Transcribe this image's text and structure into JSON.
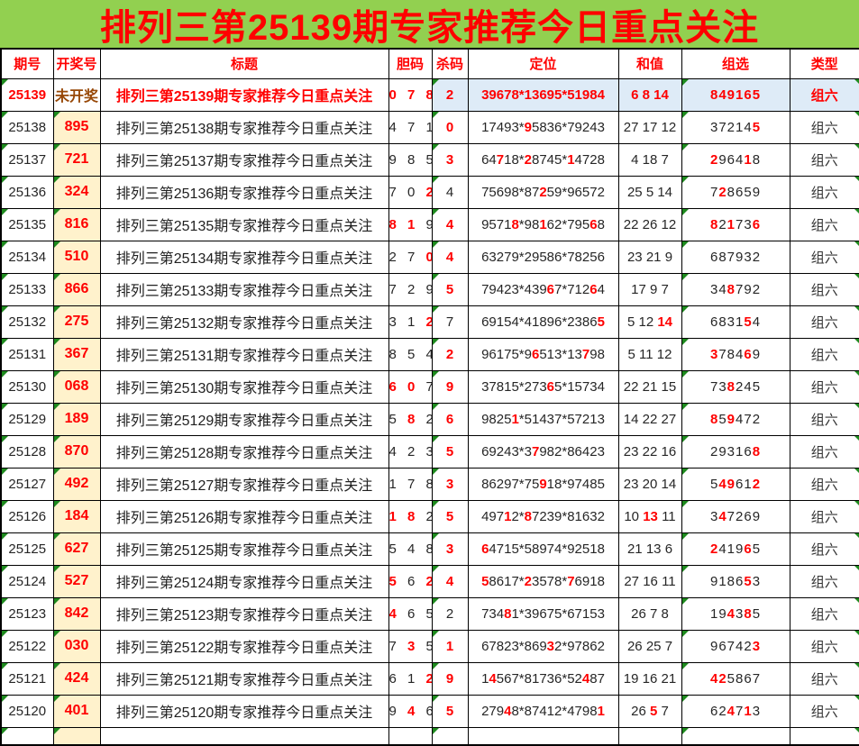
{
  "page_title": "排列三第25139期专家推荐今日重点关注",
  "colors": {
    "title_bg_green": "#92D050",
    "highlight_red": "#FF0000",
    "pending_row_blue": "#DEEBF7",
    "draw_cell_cream": "#FFF2CC",
    "pending_text_brown": "#974706",
    "comment_triangle_green": "#1E8A1E"
  },
  "table": {
    "columns": [
      "期号",
      "开奖号",
      "标题",
      "胆码",
      "杀码",
      "定位",
      "和值",
      "组选",
      "类型"
    ],
    "rows": [
      {
        "issue": "25139",
        "draw": "未开奖",
        "title": "排列三第25139期专家推荐今日重点关注",
        "dan": "078",
        "dan_red": [],
        "kill": "2",
        "kill_red": false,
        "pos": [
          "39678",
          "13695",
          "51984"
        ],
        "pos_red": [
          [],
          [],
          []
        ],
        "sum": [
          "6",
          "8",
          "14"
        ],
        "sum_red": [],
        "group": "849165",
        "group_red": [],
        "type": "组六",
        "highlight": true
      },
      {
        "issue": "25138",
        "draw": "895",
        "title": "排列三第25138期专家推荐今日重点关注",
        "dan": "471",
        "dan_red": [],
        "kill": "0",
        "kill_red": true,
        "pos": [
          "17493",
          "95836",
          "79243"
        ],
        "pos_red": [
          [],
          [
            0
          ],
          []
        ],
        "sum": [
          "27",
          "17",
          "12"
        ],
        "sum_red": [],
        "group": "372145",
        "group_red": [
          5
        ],
        "type": "组六"
      },
      {
        "issue": "25137",
        "draw": "721",
        "title": "排列三第25137期专家推荐今日重点关注",
        "dan": "985",
        "dan_red": [],
        "kill": "3",
        "kill_red": true,
        "pos": [
          "64718",
          "28745",
          "14728"
        ],
        "pos_red": [
          [
            2
          ],
          [
            0
          ],
          [
            0
          ]
        ],
        "sum": [
          "4",
          "18",
          "7"
        ],
        "sum_red": [],
        "group": "296418",
        "group_red": [
          0,
          4
        ],
        "type": "组六"
      },
      {
        "issue": "25136",
        "draw": "324",
        "title": "排列三第25136期专家推荐今日重点关注",
        "dan": "702",
        "dan_red": [
          2
        ],
        "kill": "4",
        "kill_red": false,
        "pos": [
          "75698",
          "87259",
          "96572"
        ],
        "pos_red": [
          [],
          [
            2
          ],
          []
        ],
        "sum": [
          "25",
          "5",
          "14"
        ],
        "sum_red": [],
        "group": "728659",
        "group_red": [
          1
        ],
        "type": "组六"
      },
      {
        "issue": "25135",
        "draw": "816",
        "title": "排列三第25135期专家推荐今日重点关注",
        "dan": "819",
        "dan_red": [
          0,
          1
        ],
        "kill": "4",
        "kill_red": true,
        "pos": [
          "95718",
          "98162",
          "79568"
        ],
        "pos_red": [
          [
            4
          ],
          [
            2
          ],
          [
            3
          ]
        ],
        "sum": [
          "22",
          "26",
          "12"
        ],
        "sum_red": [],
        "group": "821736",
        "group_red": [
          0,
          2,
          5
        ],
        "type": "组六"
      },
      {
        "issue": "25134",
        "draw": "510",
        "title": "排列三第25134期专家推荐今日重点关注",
        "dan": "270",
        "dan_red": [
          2
        ],
        "kill": "4",
        "kill_red": true,
        "pos": [
          "63279",
          "29586",
          "78256"
        ],
        "pos_red": [
          [],
          [],
          []
        ],
        "sum": [
          "23",
          "21",
          "9"
        ],
        "sum_red": [],
        "group": "687932",
        "group_red": [],
        "type": "组六"
      },
      {
        "issue": "25133",
        "draw": "866",
        "title": "排列三第25133期专家推荐今日重点关注",
        "dan": "729",
        "dan_red": [],
        "kill": "5",
        "kill_red": true,
        "pos": [
          "79423",
          "43967",
          "71264"
        ],
        "pos_red": [
          [],
          [
            3
          ],
          [
            3
          ]
        ],
        "sum": [
          "17",
          "9",
          "7"
        ],
        "sum_red": [],
        "group": "348792",
        "group_red": [
          2
        ],
        "type": "组六"
      },
      {
        "issue": "25132",
        "draw": "275",
        "title": "排列三第25132期专家推荐今日重点关注",
        "dan": "312",
        "dan_red": [
          2
        ],
        "kill": "7",
        "kill_red": false,
        "pos": [
          "69154",
          "41896",
          "23865"
        ],
        "pos_red": [
          [],
          [],
          [
            4
          ]
        ],
        "sum": [
          "5",
          "12",
          "14"
        ],
        "sum_red": [
          2
        ],
        "group": "683154",
        "group_red": [
          4
        ],
        "type": "组六"
      },
      {
        "issue": "25131",
        "draw": "367",
        "title": "排列三第25131期专家推荐今日重点关注",
        "dan": "854",
        "dan_red": [],
        "kill": "2",
        "kill_red": true,
        "pos": [
          "96175",
          "96513",
          "13798"
        ],
        "pos_red": [
          [],
          [
            1
          ],
          [
            2
          ]
        ],
        "sum": [
          "5",
          "11",
          "12"
        ],
        "sum_red": [],
        "group": "378469",
        "group_red": [
          0,
          4
        ],
        "type": "组六"
      },
      {
        "issue": "25130",
        "draw": "068",
        "title": "排列三第25130期专家推荐今日重点关注",
        "dan": "607",
        "dan_red": [
          0,
          1
        ],
        "kill": "9",
        "kill_red": true,
        "pos": [
          "37815",
          "27365",
          "15734"
        ],
        "pos_red": [
          [],
          [
            3
          ],
          []
        ],
        "sum": [
          "22",
          "21",
          "15"
        ],
        "sum_red": [],
        "group": "738245",
        "group_red": [
          2
        ],
        "type": "组六"
      },
      {
        "issue": "25129",
        "draw": "189",
        "title": "排列三第25129期专家推荐今日重点关注",
        "dan": "582",
        "dan_red": [
          1
        ],
        "kill": "6",
        "kill_red": true,
        "pos": [
          "98251",
          "51437",
          "57213"
        ],
        "pos_red": [
          [
            4
          ],
          [],
          []
        ],
        "sum": [
          "14",
          "22",
          "27"
        ],
        "sum_red": [],
        "group": "859472",
        "group_red": [
          0,
          2
        ],
        "type": "组六"
      },
      {
        "issue": "25128",
        "draw": "870",
        "title": "排列三第25128期专家推荐今日重点关注",
        "dan": "423",
        "dan_red": [],
        "kill": "5",
        "kill_red": true,
        "pos": [
          "69243",
          "37982",
          "86423"
        ],
        "pos_red": [
          [],
          [
            1
          ],
          []
        ],
        "sum": [
          "23",
          "22",
          "16"
        ],
        "sum_red": [],
        "group": "293168",
        "group_red": [
          5
        ],
        "type": "组六"
      },
      {
        "issue": "25127",
        "draw": "492",
        "title": "排列三第25127期专家推荐今日重点关注",
        "dan": "178",
        "dan_red": [],
        "kill": "3",
        "kill_red": true,
        "pos": [
          "86297",
          "75918",
          "97485"
        ],
        "pos_red": [
          [],
          [
            2
          ],
          []
        ],
        "sum": [
          "23",
          "20",
          "14"
        ],
        "sum_red": [],
        "group": "549612",
        "group_red": [
          1,
          2,
          5
        ],
        "type": "组六"
      },
      {
        "issue": "25126",
        "draw": "184",
        "title": "排列三第25126期专家推荐今日重点关注",
        "dan": "182",
        "dan_red": [
          0,
          1
        ],
        "kill": "5",
        "kill_red": true,
        "pos": [
          "49712",
          "87239",
          "81632"
        ],
        "pos_red": [
          [
            3
          ],
          [
            0
          ],
          []
        ],
        "sum": [
          "10",
          "13",
          "11"
        ],
        "sum_red": [
          1
        ],
        "group": "347269",
        "group_red": [
          1
        ],
        "type": "组六"
      },
      {
        "issue": "25125",
        "draw": "627",
        "title": "排列三第25125期专家推荐今日重点关注",
        "dan": "548",
        "dan_red": [],
        "kill": "3",
        "kill_red": true,
        "pos": [
          "64715",
          "58974",
          "92518"
        ],
        "pos_red": [
          [
            0
          ],
          [],
          []
        ],
        "sum": [
          "21",
          "13",
          "6"
        ],
        "sum_red": [],
        "group": "241965",
        "group_red": [
          0,
          4
        ],
        "type": "组六"
      },
      {
        "issue": "25124",
        "draw": "527",
        "title": "排列三第25124期专家推荐今日重点关注",
        "dan": "562",
        "dan_red": [
          0,
          2
        ],
        "kill": "4",
        "kill_red": true,
        "pos": [
          "58617",
          "23578",
          "76918"
        ],
        "pos_red": [
          [
            0
          ],
          [
            0
          ],
          [
            0
          ]
        ],
        "sum": [
          "27",
          "16",
          "11"
        ],
        "sum_red": [],
        "group": "918653",
        "group_red": [
          4
        ],
        "type": "组六"
      },
      {
        "issue": "25123",
        "draw": "842",
        "title": "排列三第25123期专家推荐今日重点关注",
        "dan": "465",
        "dan_red": [
          0
        ],
        "kill": "2",
        "kill_red": false,
        "pos": [
          "73481",
          "39675",
          "67153"
        ],
        "pos_red": [
          [
            3
          ],
          [],
          []
        ],
        "sum": [
          "26",
          "7",
          "8"
        ],
        "sum_red": [],
        "group": "194385",
        "group_red": [
          2,
          4
        ],
        "type": "组六"
      },
      {
        "issue": "25122",
        "draw": "030",
        "title": "排列三第25122期专家推荐今日重点关注",
        "dan": "735",
        "dan_red": [
          1
        ],
        "kill": "1",
        "kill_red": true,
        "pos": [
          "67823",
          "86932",
          "97862"
        ],
        "pos_red": [
          [],
          [
            3
          ],
          []
        ],
        "sum": [
          "26",
          "25",
          "7"
        ],
        "sum_red": [],
        "group": "967423",
        "group_red": [
          5
        ],
        "type": "组六"
      },
      {
        "issue": "25121",
        "draw": "424",
        "title": "排列三第25121期专家推荐今日重点关注",
        "dan": "612",
        "dan_red": [
          2
        ],
        "kill": "9",
        "kill_red": true,
        "pos": [
          "14567",
          "81736",
          "52487"
        ],
        "pos_red": [
          [
            1
          ],
          [],
          [
            2
          ]
        ],
        "sum": [
          "19",
          "16",
          "21"
        ],
        "sum_red": [],
        "group": "425867",
        "group_red": [
          0,
          1
        ],
        "type": "组六"
      },
      {
        "issue": "25120",
        "draw": "401",
        "title": "排列三第25120期专家推荐今日重点关注",
        "dan": "946",
        "dan_red": [
          1
        ],
        "kill": "5",
        "kill_red": true,
        "pos": [
          "27948",
          "87412",
          "47981"
        ],
        "pos_red": [
          [
            3
          ],
          [],
          [
            4
          ]
        ],
        "sum": [
          "26",
          "5",
          "7"
        ],
        "sum_red": [
          1
        ],
        "group": "624713",
        "group_red": [
          2,
          4
        ],
        "type": "组六"
      }
    ]
  }
}
